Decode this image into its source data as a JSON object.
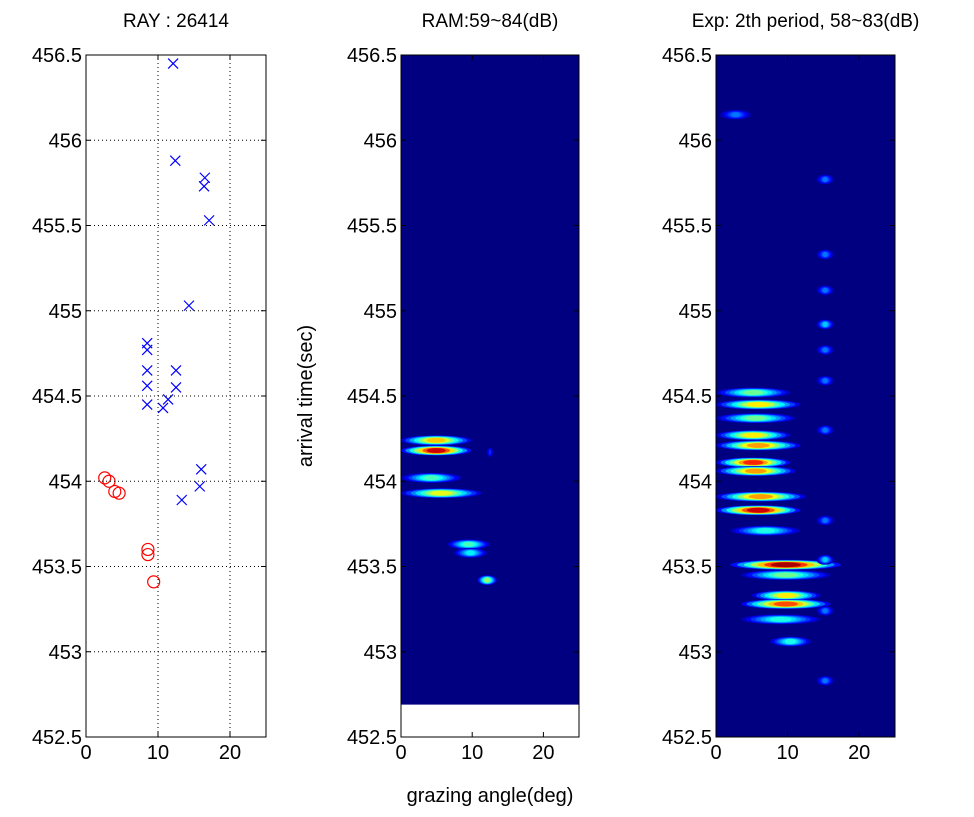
{
  "chart_data": [
    {
      "type": "scatter",
      "title": "RAY : 26414",
      "xlim": [
        0,
        25
      ],
      "ylim": [
        452.5,
        456.5
      ],
      "xticks": [
        0,
        10,
        20
      ],
      "yticks": [
        452.5,
        453,
        453.5,
        454,
        454.5,
        455,
        455.5,
        456,
        456.5
      ],
      "grid": true,
      "series": [
        {
          "color": "#0000ff",
          "marker": "x",
          "x": [
            12.1,
            12.4,
            16.5,
            16.4,
            17.1,
            14.3,
            8.5,
            8.5,
            8.5,
            8.5,
            8.5,
            12.5,
            12.5,
            11.4,
            10.7,
            16.0,
            15.8,
            13.3
          ],
          "y": [
            456.45,
            455.88,
            455.78,
            455.73,
            455.53,
            455.03,
            454.81,
            454.77,
            454.65,
            454.56,
            454.45,
            454.65,
            454.55,
            454.48,
            454.43,
            454.07,
            453.97,
            453.89
          ]
        },
        {
          "color": "#ff0000",
          "marker": "o",
          "x": [
            2.6,
            3.2,
            4.0,
            4.6,
            8.6,
            8.6,
            9.4
          ],
          "y": [
            454.02,
            454.0,
            453.94,
            453.93,
            453.6,
            453.57,
            453.41
          ]
        }
      ]
    },
    {
      "type": "heatmap",
      "title": "RAM:59~84(dB)",
      "xlabel": "grazing angle(deg)",
      "ylabel": "arrival time(sec)",
      "xlim": [
        0,
        25
      ],
      "ylim": [
        452.5,
        456.5
      ],
      "image_ylim": [
        452.69,
        456.5
      ],
      "clim": [
        59,
        84
      ],
      "colormap": "jet",
      "xticks": [
        0,
        10,
        20
      ],
      "yticks": [
        452.5,
        453,
        453.5,
        454,
        454.5,
        455,
        455.5,
        456,
        456.5
      ],
      "streaks": [
        {
          "y": 454.24,
          "x0": 0,
          "x1": 9.9,
          "peak": 76
        },
        {
          "y": 454.18,
          "x0": 0,
          "x1": 9.9,
          "peak": 82
        },
        {
          "y": 454.17,
          "x0": 12,
          "x1": 13,
          "peak": 63
        },
        {
          "y": 454.02,
          "x0": 0,
          "x1": 8.5,
          "peak": 70
        },
        {
          "y": 453.93,
          "x0": 0,
          "x1": 11.3,
          "peak": 74
        },
        {
          "y": 453.63,
          "x0": 6.5,
          "x1": 12.5,
          "peak": 70
        },
        {
          "y": 453.58,
          "x0": 7.4,
          "x1": 12.1,
          "peak": 68
        },
        {
          "y": 453.42,
          "x0": 10.7,
          "x1": 13.5,
          "peak": 72
        }
      ]
    },
    {
      "type": "heatmap",
      "title": "Exp: 2th period, 58~83(dB)",
      "xlim": [
        0,
        25
      ],
      "ylim": [
        452.5,
        456.5
      ],
      "image_ylim": [
        452.5,
        456.5
      ],
      "clim": [
        58,
        83
      ],
      "colormap": "jet",
      "xticks": [
        0,
        10,
        20
      ],
      "yticks": [
        452.5,
        453,
        453.5,
        454,
        454.5,
        455,
        455.5,
        456,
        456.5
      ],
      "streaks": [
        {
          "y": 454.52,
          "x0": 0,
          "x1": 10.4,
          "peak": 70
        },
        {
          "y": 454.45,
          "x0": 0,
          "x1": 11.8,
          "peak": 74
        },
        {
          "y": 454.37,
          "x0": 0,
          "x1": 11.1,
          "peak": 70
        },
        {
          "y": 454.27,
          "x0": 0,
          "x1": 10.4,
          "peak": 74
        },
        {
          "y": 454.21,
          "x0": 0,
          "x1": 11.8,
          "peak": 76
        },
        {
          "y": 454.11,
          "x0": 0,
          "x1": 10.4,
          "peak": 79
        },
        {
          "y": 454.06,
          "x0": 0,
          "x1": 11.1,
          "peak": 76
        },
        {
          "y": 453.91,
          "x0": 0,
          "x1": 12.5,
          "peak": 76
        },
        {
          "y": 453.83,
          "x0": 0,
          "x1": 11.8,
          "peak": 81
        },
        {
          "y": 453.71,
          "x0": 2,
          "x1": 11.8,
          "peak": 68
        },
        {
          "y": 453.51,
          "x0": 2,
          "x1": 17.5,
          "peak": 82
        },
        {
          "y": 453.45,
          "x0": 3.5,
          "x1": 16,
          "peak": 70
        },
        {
          "y": 453.33,
          "x0": 5,
          "x1": 14.6,
          "peak": 74
        },
        {
          "y": 453.28,
          "x0": 3.5,
          "x1": 16,
          "peak": 78
        },
        {
          "y": 453.19,
          "x0": 3.5,
          "x1": 14.6,
          "peak": 68
        },
        {
          "y": 453.06,
          "x0": 7.5,
          "x1": 13.3,
          "peak": 68
        },
        {
          "y": 456.15,
          "x0": 0.5,
          "x1": 5,
          "peak": 64
        },
        {
          "y": 455.77,
          "x0": 14,
          "x1": 16.5,
          "peak": 64
        },
        {
          "y": 455.33,
          "x0": 14,
          "x1": 16.5,
          "peak": 64
        },
        {
          "y": 455.12,
          "x0": 14,
          "x1": 16.5,
          "peak": 64
        },
        {
          "y": 454.92,
          "x0": 14,
          "x1": 16.5,
          "peak": 66
        },
        {
          "y": 454.77,
          "x0": 14,
          "x1": 16.5,
          "peak": 64
        },
        {
          "y": 454.59,
          "x0": 14,
          "x1": 16.5,
          "peak": 64
        },
        {
          "y": 454.3,
          "x0": 14,
          "x1": 16.5,
          "peak": 64
        },
        {
          "y": 453.77,
          "x0": 14,
          "x1": 16.5,
          "peak": 64
        },
        {
          "y": 453.54,
          "x0": 14,
          "x1": 16.5,
          "peak": 66
        },
        {
          "y": 453.24,
          "x0": 14,
          "x1": 16.5,
          "peak": 64
        },
        {
          "y": 452.83,
          "x0": 14,
          "x1": 16.5,
          "peak": 64
        }
      ]
    }
  ]
}
